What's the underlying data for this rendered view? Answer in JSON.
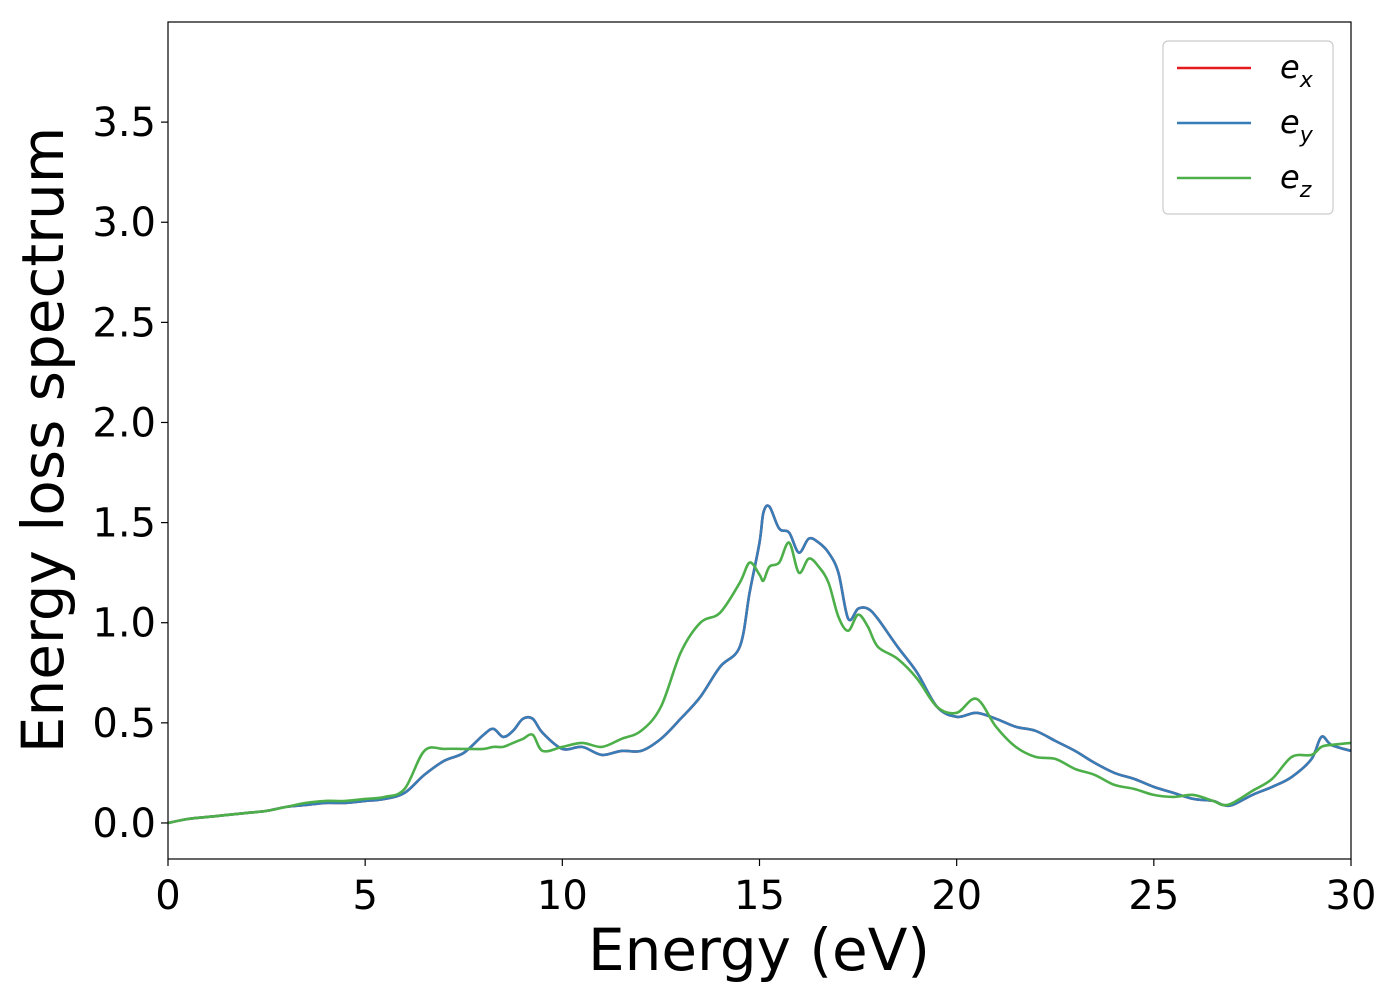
{
  "chart_data": {
    "type": "line",
    "xlabel": "Energy (eV)",
    "ylabel": "Energy loss spectrum",
    "xlim": [
      0,
      30
    ],
    "ylim": [
      -0.18,
      4.0
    ],
    "xticks": [
      0,
      5,
      10,
      15,
      20,
      25,
      30
    ],
    "xtick_labels": [
      "0",
      "5",
      "10",
      "15",
      "20",
      "25",
      "30"
    ],
    "yticks": [
      0.0,
      0.5,
      1.0,
      1.5,
      2.0,
      2.5,
      3.0,
      3.5
    ],
    "ytick_labels": [
      "0.0",
      "0.5",
      "1.0",
      "1.5",
      "2.0",
      "2.5",
      "3.0",
      "3.5"
    ],
    "grid": false,
    "legend_position": "top-right",
    "x": [
      0,
      0.5,
      1,
      1.5,
      2,
      2.5,
      3,
      3.5,
      4,
      4.5,
      5,
      5.5,
      6,
      6.5,
      7,
      7.5,
      8,
      8.25,
      8.5,
      8.75,
      9,
      9.25,
      9.5,
      10,
      10.5,
      11,
      11.5,
      12,
      12.5,
      13,
      13.5,
      14,
      14.5,
      14.75,
      15,
      15.1,
      15.25,
      15.5,
      15.75,
      16,
      16.25,
      16.5,
      16.75,
      17,
      17.25,
      17.5,
      17.75,
      18,
      18.5,
      19,
      19.5,
      20,
      20.5,
      21,
      21.5,
      22,
      22.5,
      23,
      23.5,
      24,
      24.5,
      25,
      25.5,
      26,
      26.5,
      26.75,
      27,
      27.5,
      28,
      28.5,
      29,
      29.25,
      29.5,
      30
    ],
    "series": [
      {
        "name": "e_x",
        "label_base": "e",
        "label_sub": "x",
        "color": "#e41a1c",
        "y": [
          0.0,
          0.02,
          0.03,
          0.04,
          0.05,
          0.06,
          0.08,
          0.09,
          0.1,
          0.1,
          0.11,
          0.12,
          0.15,
          0.24,
          0.31,
          0.35,
          0.44,
          0.47,
          0.43,
          0.46,
          0.52,
          0.52,
          0.45,
          0.37,
          0.38,
          0.34,
          0.36,
          0.36,
          0.42,
          0.52,
          0.63,
          0.78,
          0.88,
          1.15,
          1.4,
          1.55,
          1.58,
          1.47,
          1.45,
          1.35,
          1.42,
          1.4,
          1.35,
          1.25,
          1.02,
          1.07,
          1.07,
          1.02,
          0.88,
          0.75,
          0.58,
          0.53,
          0.55,
          0.52,
          0.48,
          0.46,
          0.41,
          0.36,
          0.3,
          0.25,
          0.22,
          0.18,
          0.15,
          0.12,
          0.11,
          0.09,
          0.09,
          0.14,
          0.18,
          0.23,
          0.32,
          0.43,
          0.39,
          0.36
        ]
      },
      {
        "name": "e_y",
        "label_base": "e",
        "label_sub": "y",
        "color": "#377eb8",
        "y": [
          0.0,
          0.02,
          0.03,
          0.04,
          0.05,
          0.06,
          0.08,
          0.09,
          0.1,
          0.1,
          0.11,
          0.12,
          0.15,
          0.24,
          0.31,
          0.35,
          0.44,
          0.47,
          0.43,
          0.46,
          0.52,
          0.52,
          0.45,
          0.37,
          0.38,
          0.34,
          0.36,
          0.36,
          0.42,
          0.52,
          0.63,
          0.78,
          0.88,
          1.15,
          1.4,
          1.55,
          1.58,
          1.47,
          1.45,
          1.35,
          1.42,
          1.4,
          1.35,
          1.25,
          1.02,
          1.07,
          1.07,
          1.02,
          0.88,
          0.75,
          0.58,
          0.53,
          0.55,
          0.52,
          0.48,
          0.46,
          0.41,
          0.36,
          0.3,
          0.25,
          0.22,
          0.18,
          0.15,
          0.12,
          0.11,
          0.09,
          0.09,
          0.14,
          0.18,
          0.23,
          0.32,
          0.43,
          0.39,
          0.36
        ]
      },
      {
        "name": "e_z",
        "label_base": "e",
        "label_sub": "z",
        "color": "#4daf4a",
        "y": [
          0.0,
          0.02,
          0.03,
          0.04,
          0.05,
          0.06,
          0.08,
          0.1,
          0.11,
          0.11,
          0.12,
          0.13,
          0.17,
          0.36,
          0.37,
          0.37,
          0.37,
          0.38,
          0.38,
          0.4,
          0.42,
          0.44,
          0.36,
          0.38,
          0.4,
          0.38,
          0.42,
          0.46,
          0.58,
          0.85,
          1.0,
          1.05,
          1.2,
          1.3,
          1.24,
          1.21,
          1.28,
          1.3,
          1.4,
          1.25,
          1.32,
          1.28,
          1.2,
          1.03,
          0.96,
          1.04,
          0.98,
          0.88,
          0.82,
          0.72,
          0.58,
          0.55,
          0.62,
          0.48,
          0.38,
          0.33,
          0.32,
          0.27,
          0.24,
          0.19,
          0.17,
          0.14,
          0.13,
          0.14,
          0.11,
          0.09,
          0.1,
          0.16,
          0.22,
          0.33,
          0.34,
          0.38,
          0.39,
          0.4
        ]
      }
    ]
  }
}
